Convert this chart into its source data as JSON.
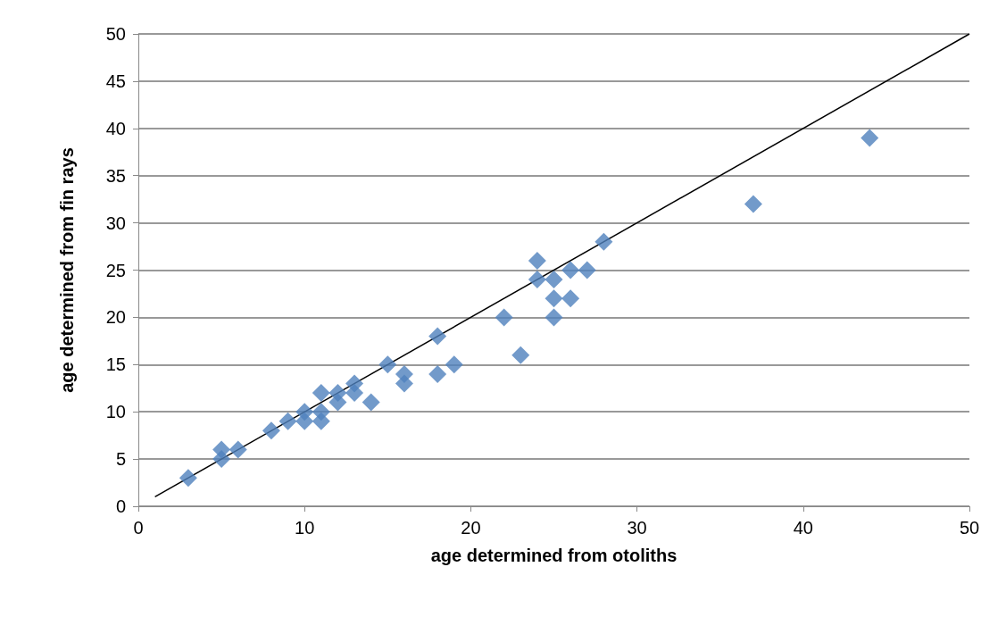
{
  "chart_data": {
    "type": "scatter",
    "xlabel": "age determined from otoliths",
    "ylabel": "age determined from fin rays",
    "xlim": [
      0,
      50
    ],
    "xticks": [
      0,
      10,
      20,
      30,
      40,
      50
    ],
    "ylim": [
      0,
      50
    ],
    "yticks": [
      0,
      5,
      10,
      15,
      20,
      25,
      30,
      35,
      40,
      45,
      50
    ],
    "grid": "y",
    "series": [
      {
        "marker": "diamond",
        "color": "#4f81bd",
        "x": [
          3,
          5,
          5,
          6,
          8,
          9,
          10,
          10,
          11,
          11,
          11,
          12,
          12,
          13,
          13,
          14,
          15,
          16,
          16,
          18,
          18,
          19,
          22,
          23,
          24,
          24,
          25,
          25,
          25,
          26,
          26,
          27,
          28,
          37,
          44
        ],
        "values": [
          3,
          6,
          5,
          6,
          8,
          9,
          10,
          9,
          12,
          10,
          9,
          12,
          11,
          13,
          12,
          11,
          15,
          14,
          13,
          18,
          14,
          15,
          20,
          16,
          26,
          24,
          24,
          22,
          20,
          25,
          22,
          25,
          28,
          32,
          39
        ]
      },
      {
        "type": "line",
        "marker": "none",
        "color": "#000000",
        "x": [
          1,
          50
        ],
        "values": [
          1,
          50
        ]
      }
    ]
  }
}
